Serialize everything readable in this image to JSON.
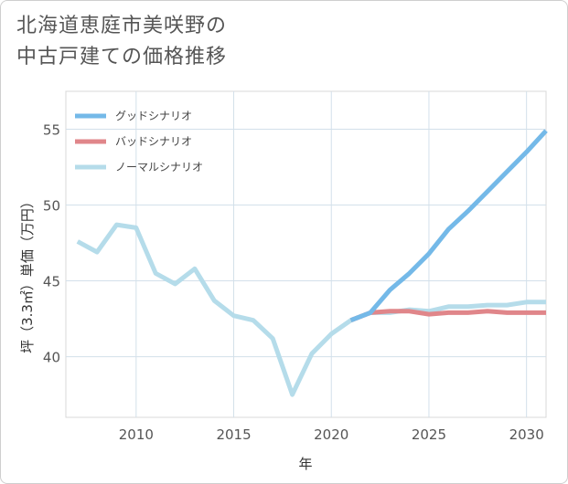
{
  "title": {
    "line1": "北海道恵庭市美咲野の",
    "line2": "中古戸建ての価格推移"
  },
  "chart_data": {
    "type": "line",
    "title": "北海道恵庭市美咲野の中古戸建ての価格推移",
    "xlabel": "年",
    "ylabel": "坪（3.3㎡）単価（万円）",
    "xlim": [
      2006.4,
      2031
    ],
    "ylim": [
      36,
      57.5
    ],
    "xticks": [
      2010,
      2015,
      2020,
      2025,
      2030
    ],
    "yticks": [
      40,
      45,
      50,
      55
    ],
    "grid": true,
    "legend_position": "top-left",
    "series": [
      {
        "name": "グッドシナリオ",
        "color": "#74b9e8",
        "x": [
          2021,
          2022,
          2023,
          2024,
          2025,
          2026,
          2027,
          2028,
          2029,
          2030,
          2031
        ],
        "values": [
          42.4,
          42.9,
          44.4,
          45.5,
          46.8,
          48.4,
          49.6,
          50.9,
          52.2,
          53.5,
          54.9
        ]
      },
      {
        "name": "バッドシナリオ",
        "color": "#e0868a",
        "x": [
          2021,
          2022,
          2023,
          2024,
          2025,
          2026,
          2027,
          2028,
          2029,
          2030,
          2031
        ],
        "values": [
          42.4,
          42.9,
          43.0,
          43.0,
          42.8,
          42.9,
          42.9,
          43.0,
          42.9,
          42.9,
          42.9
        ]
      },
      {
        "name": "ノーマルシナリオ",
        "color": "#b5dcea",
        "x": [
          2007,
          2008,
          2009,
          2010,
          2011,
          2012,
          2013,
          2014,
          2015,
          2016,
          2017,
          2018,
          2019,
          2020,
          2021,
          2022,
          2023,
          2024,
          2025,
          2026,
          2027,
          2028,
          2029,
          2030,
          2031
        ],
        "values": [
          47.6,
          46.9,
          48.7,
          48.5,
          45.5,
          44.8,
          45.8,
          43.7,
          42.7,
          42.4,
          41.2,
          37.5,
          40.2,
          41.5,
          42.4,
          42.9,
          42.9,
          43.1,
          43.0,
          43.3,
          43.3,
          43.4,
          43.4,
          43.6,
          43.6
        ]
      }
    ]
  }
}
